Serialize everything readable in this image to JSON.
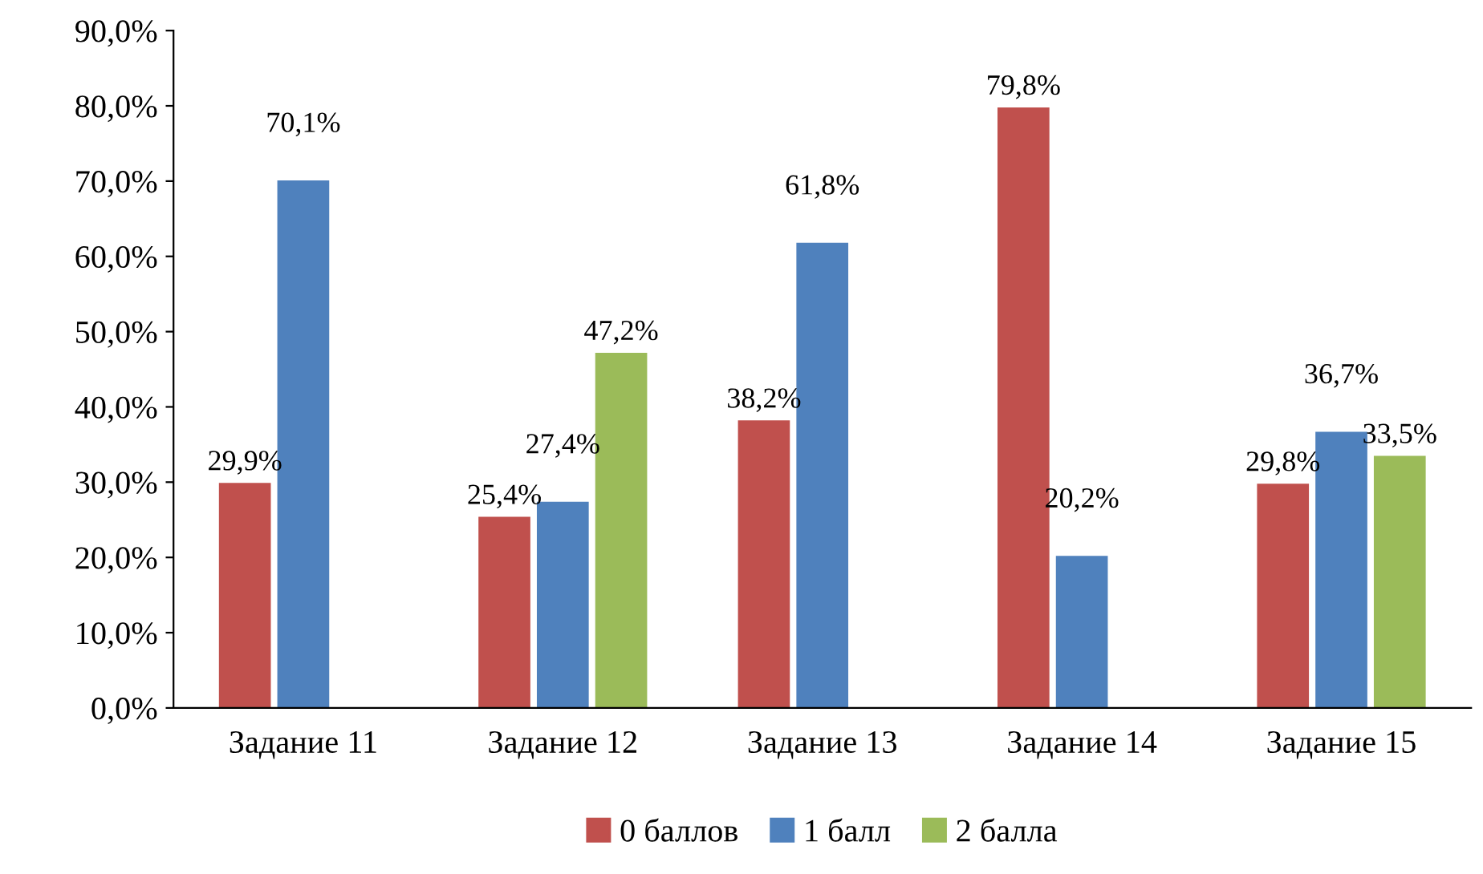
{
  "chart_data": {
    "type": "bar",
    "categories": [
      "Задание 11",
      "Задание 12",
      "Задание 13",
      "Задание 14",
      "Задание 15"
    ],
    "series": [
      {
        "name": "0 баллов",
        "color": "#c0504d",
        "values": [
          29.9,
          25.4,
          38.2,
          79.8,
          29.8
        ],
        "value_labels": [
          "29,9%",
          "25,4%",
          "38,2%",
          "79,8%",
          "29,8%"
        ]
      },
      {
        "name": "1 балл",
        "color": "#4f81bd",
        "values": [
          70.1,
          27.4,
          61.8,
          20.2,
          36.7
        ],
        "value_labels": [
          "70,1%",
          "27,4%",
          "61,8%",
          "20,2%",
          "36,7%"
        ]
      },
      {
        "name": "2 балла",
        "color": "#9bbb59",
        "values": [
          null,
          47.2,
          null,
          null,
          33.5
        ],
        "value_labels": [
          null,
          "47,2%",
          null,
          null,
          "33,5%"
        ]
      }
    ],
    "ylim": [
      0,
      90
    ],
    "yticks": [
      {
        "value": 0,
        "label": "0,0%"
      },
      {
        "value": 10,
        "label": "10,0%"
      },
      {
        "value": 20,
        "label": "20,0%"
      },
      {
        "value": 30,
        "label": "30,0%"
      },
      {
        "value": 40,
        "label": "40,0%"
      },
      {
        "value": 50,
        "label": "50,0%"
      },
      {
        "value": 60,
        "label": "60,0%"
      },
      {
        "value": 70,
        "label": "70,0%"
      },
      {
        "value": 80,
        "label": "80,0%"
      },
      {
        "value": 90,
        "label": "90,0%"
      }
    ],
    "grid": false,
    "legend": "bottom"
  }
}
